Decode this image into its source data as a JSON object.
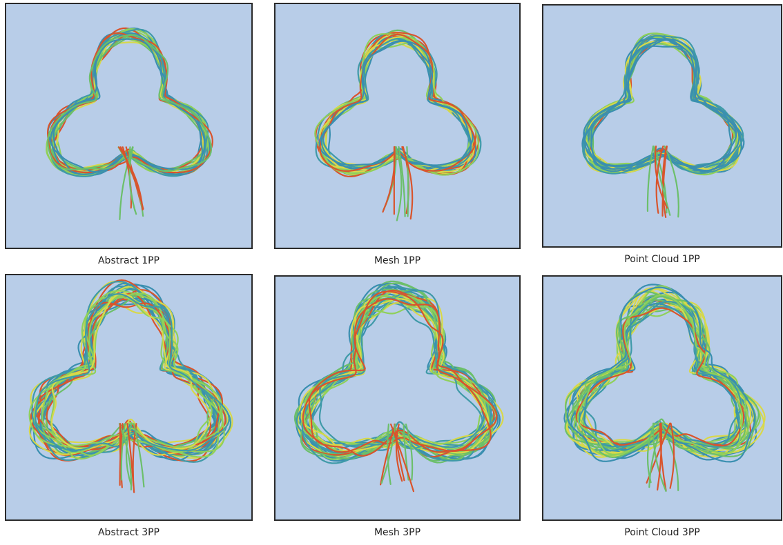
{
  "panels": [
    {
      "caption": "Abstract 1PP"
    },
    {
      "caption": "Mesh 1PP"
    },
    {
      "caption": "Point Cloud 1PP"
    },
    {
      "caption": "Abstract 3PP"
    },
    {
      "caption": "Mesh 3PP"
    },
    {
      "caption": "Point Cloud 3PP"
    }
  ]
}
